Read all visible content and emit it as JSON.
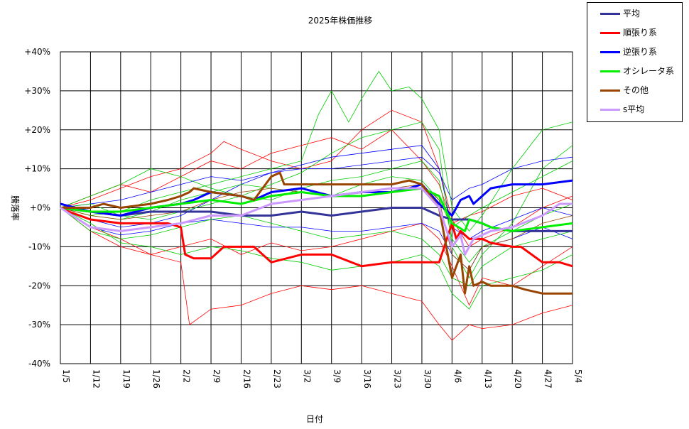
{
  "chart_data": {
    "type": "line",
    "title": "2025年株価推移",
    "xlabel": "日付",
    "ylabel": "騰落率",
    "x_ticks": [
      "1/5",
      "1/12",
      "1/19",
      "1/26",
      "2/2",
      "2/9",
      "2/16",
      "2/23",
      "3/2",
      "3/9",
      "3/16",
      "3/23",
      "3/30",
      "4/6",
      "4/13",
      "4/20",
      "4/27",
      "5/4"
    ],
    "y_ticks": [
      "+40%",
      "+30%",
      "+20%",
      "+10%",
      "+0%",
      "-10%",
      "-20%",
      "-30%",
      "-40%"
    ],
    "ylim": [
      -40,
      40
    ],
    "xlim_days": [
      0,
      119
    ],
    "grid": true,
    "legend_position": "top-right",
    "series": [
      {
        "name": "平均",
        "color": "#333399",
        "width": 3,
        "x": [
          0,
          7,
          14,
          21,
          28,
          35,
          42,
          49,
          56,
          63,
          70,
          77,
          84,
          88,
          91,
          94,
          95,
          98,
          100,
          105,
          112,
          119
        ],
        "y": [
          0,
          -1,
          -2,
          -1,
          -1,
          -1,
          -2,
          -2,
          -1,
          -2,
          -1,
          0,
          0,
          -2,
          -3,
          -3,
          -3,
          -4,
          -5,
          -6,
          -6,
          -6
        ]
      },
      {
        "name": "順張り系",
        "color": "#ff0000",
        "width": 3,
        "x": [
          0,
          2,
          7,
          14,
          21,
          25,
          28,
          29,
          31,
          35,
          38,
          42,
          45,
          49,
          56,
          63,
          70,
          77,
          84,
          88,
          91,
          92,
          93,
          95,
          98,
          100,
          105,
          107,
          112,
          116,
          119
        ],
        "y": [
          0,
          -1,
          -3,
          -4,
          -4,
          -4,
          -5,
          -12,
          -13,
          -13,
          -10,
          -10,
          -10,
          -14,
          -12,
          -12,
          -15,
          -14,
          -14,
          -14,
          -4,
          -8,
          -6,
          -8,
          -8,
          -9,
          -10,
          -10,
          -14,
          -14,
          -15
        ]
      },
      {
        "name": "逆張り系",
        "color": "#0000ff",
        "width": 3,
        "x": [
          0,
          7,
          14,
          21,
          28,
          31,
          35,
          42,
          45,
          49,
          56,
          63,
          70,
          77,
          81,
          84,
          88,
          91,
          93,
          95,
          96,
          98,
          100,
          105,
          112,
          119
        ],
        "y": [
          1,
          -1,
          -2,
          0,
          1,
          2,
          4,
          3,
          2,
          4,
          5,
          3,
          4,
          4,
          5,
          6,
          1,
          -2,
          2,
          3,
          1,
          3,
          5,
          6,
          6,
          7
        ]
      },
      {
        "name": "オシレータ系",
        "color": "#00ee00",
        "width": 3,
        "x": [
          0,
          7,
          14,
          21,
          28,
          35,
          42,
          49,
          56,
          63,
          70,
          77,
          84,
          88,
          91,
          94,
          95,
          98,
          100,
          105,
          112,
          119
        ],
        "y": [
          0,
          -1,
          -1,
          0,
          1,
          2,
          1,
          3,
          4,
          3,
          3,
          4,
          5,
          3,
          -4,
          -6,
          -3,
          -4,
          -5,
          -6,
          -5,
          -4
        ]
      },
      {
        "name": "その他",
        "color": "#994400",
        "width": 3,
        "x": [
          0,
          7,
          10,
          14,
          21,
          25,
          28,
          30,
          31,
          35,
          42,
          45,
          49,
          51,
          52,
          56,
          63,
          70,
          77,
          81,
          84,
          88,
          91,
          93,
          94,
          95,
          96,
          98,
          100,
          105,
          108,
          112,
          119
        ],
        "y": [
          0,
          0,
          1,
          0,
          1,
          2,
          3,
          4,
          5,
          4,
          3,
          2,
          8,
          9,
          6,
          6,
          6,
          6,
          6,
          7,
          6,
          0,
          -18,
          -12,
          -22,
          -15,
          -20,
          -19,
          -20,
          -20,
          -21,
          -22,
          -22
        ]
      },
      {
        "name": "s平均",
        "color": "#cc99ff",
        "width": 3,
        "x": [
          0,
          7,
          14,
          21,
          28,
          35,
          42,
          49,
          56,
          63,
          70,
          77,
          84,
          88,
          91,
          93,
          94,
          96,
          98,
          100,
          105,
          112,
          116,
          119
        ],
        "y": [
          0,
          -5,
          -6,
          -5,
          -4,
          -2,
          -2,
          1,
          2,
          3,
          4,
          5,
          5,
          0,
          -10,
          -7,
          -12,
          -8,
          -7,
          -6,
          -5,
          -2,
          1,
          1
        ]
      }
    ],
    "background_lines": [
      {
        "color": "#ff0000",
        "x": [
          0,
          7,
          14,
          21,
          28,
          30,
          35,
          42,
          49,
          56,
          63,
          70,
          77,
          84,
          88,
          91,
          95,
          98,
          105,
          112,
          119
        ],
        "y": [
          0,
          -5,
          -8,
          -12,
          -14,
          -30,
          -26,
          -25,
          -22,
          -20,
          -21,
          -20,
          -22,
          -24,
          -30,
          -34,
          -30,
          -31,
          -30,
          -27,
          -25
        ]
      },
      {
        "color": "#ff0000",
        "x": [
          0,
          7,
          14,
          21,
          28,
          35,
          38,
          42,
          49,
          56,
          63,
          70,
          77,
          84,
          88,
          91,
          95,
          98,
          105,
          112,
          119
        ],
        "y": [
          0,
          2,
          5,
          8,
          10,
          14,
          17,
          15,
          12,
          10,
          12,
          20,
          25,
          22,
          10,
          -3,
          -10,
          -8,
          -5,
          0,
          3
        ]
      },
      {
        "color": "#ff0000",
        "x": [
          0,
          7,
          14,
          21,
          28,
          35,
          42,
          49,
          56,
          63,
          70,
          77,
          84,
          88,
          91,
          95,
          98,
          105,
          112,
          119
        ],
        "y": [
          0,
          -6,
          -10,
          -12,
          -10,
          -8,
          -12,
          -9,
          -11,
          -10,
          -8,
          -6,
          -4,
          -8,
          -15,
          -25,
          -18,
          -20,
          -15,
          -10
        ]
      },
      {
        "color": "#ff0000",
        "x": [
          0,
          7,
          14,
          21,
          28,
          35,
          42,
          49,
          56,
          63,
          70,
          77,
          84,
          88,
          91,
          95,
          98,
          105,
          112,
          119
        ],
        "y": [
          0,
          3,
          6,
          4,
          8,
          12,
          10,
          14,
          16,
          18,
          15,
          20,
          12,
          6,
          -4,
          -2,
          -1,
          3,
          5,
          2
        ]
      },
      {
        "color": "#0000ff",
        "x": [
          0,
          7,
          14,
          21,
          28,
          35,
          42,
          49,
          56,
          63,
          70,
          77,
          84,
          88,
          91,
          95,
          98,
          105,
          112,
          119
        ],
        "y": [
          0,
          -3,
          -5,
          -4,
          -2,
          2,
          6,
          9,
          11,
          13,
          14,
          15,
          16,
          10,
          -5,
          -8,
          -6,
          -3,
          0,
          -2
        ]
      },
      {
        "color": "#0000ff",
        "x": [
          0,
          7,
          14,
          21,
          28,
          35,
          42,
          49,
          56,
          63,
          70,
          77,
          84,
          88,
          91,
          95,
          98,
          105,
          112,
          119
        ],
        "y": [
          0,
          -5,
          -7,
          -6,
          -4,
          -3,
          -4,
          -5,
          -5,
          -6,
          -6,
          -5,
          -4,
          -6,
          -12,
          -16,
          -10,
          -8,
          -5,
          -8
        ]
      },
      {
        "color": "#0000ff",
        "x": [
          0,
          7,
          14,
          21,
          28,
          35,
          42,
          49,
          56,
          63,
          70,
          77,
          84,
          88,
          91,
          95,
          98,
          105,
          112,
          119
        ],
        "y": [
          0,
          1,
          2,
          4,
          6,
          8,
          7,
          9,
          10,
          10,
          11,
          12,
          13,
          9,
          2,
          5,
          6,
          10,
          12,
          13
        ]
      },
      {
        "color": "#00cc00",
        "x": [
          0,
          7,
          14,
          21,
          28,
          35,
          42,
          49,
          56,
          60,
          63,
          67,
          70,
          74,
          77,
          81,
          84,
          88,
          91,
          95,
          98,
          105,
          112,
          119
        ],
        "y": [
          0,
          -2,
          -1,
          2,
          4,
          6,
          8,
          10,
          12,
          24,
          30,
          22,
          28,
          35,
          30,
          31,
          28,
          20,
          0,
          -6,
          -2,
          10,
          20,
          22
        ]
      },
      {
        "color": "#00cc00",
        "x": [
          0,
          7,
          14,
          21,
          28,
          35,
          42,
          49,
          56,
          63,
          70,
          77,
          84,
          88,
          91,
          95,
          98,
          105,
          112,
          119
        ],
        "y": [
          0,
          3,
          6,
          10,
          8,
          5,
          3,
          6,
          9,
          14,
          18,
          20,
          22,
          15,
          -10,
          -18,
          -12,
          -4,
          10,
          16
        ]
      },
      {
        "color": "#00cc00",
        "x": [
          0,
          7,
          14,
          21,
          28,
          35,
          42,
          49,
          56,
          63,
          70,
          77,
          84,
          88,
          91,
          95,
          98,
          105,
          112,
          119
        ],
        "y": [
          0,
          -4,
          -9,
          -10,
          -12,
          -10,
          -11,
          -13,
          -14,
          -16,
          -15,
          -14,
          -12,
          -15,
          -22,
          -26,
          -20,
          -18,
          -16,
          -12
        ]
      },
      {
        "color": "#00cc00",
        "x": [
          0,
          7,
          14,
          21,
          28,
          35,
          42,
          49,
          56,
          63,
          70,
          77,
          84,
          88,
          91,
          95,
          98,
          105,
          112,
          119
        ],
        "y": [
          0,
          1,
          -2,
          -3,
          -1,
          1,
          3,
          2,
          5,
          7,
          8,
          10,
          12,
          7,
          -8,
          -14,
          -10,
          -6,
          -2,
          1
        ]
      },
      {
        "color": "#00cc00",
        "x": [
          0,
          7,
          14,
          21,
          28,
          35,
          42,
          49,
          56,
          63,
          70,
          77,
          84,
          88,
          91,
          95,
          98,
          105,
          112,
          119
        ],
        "y": [
          0,
          -2,
          -3,
          -1,
          2,
          4,
          6,
          5,
          4,
          3,
          6,
          8,
          7,
          2,
          -5,
          -2,
          0,
          4,
          8,
          12
        ]
      },
      {
        "color": "#00cc00",
        "x": [
          0,
          7,
          14,
          21,
          28,
          35,
          42,
          49,
          56,
          63,
          70,
          77,
          84,
          88,
          91,
          95,
          98,
          105,
          112,
          119
        ],
        "y": [
          0,
          -6,
          -8,
          -7,
          -5,
          -3,
          -2,
          -4,
          -6,
          -8,
          -7,
          -6,
          -8,
          -12,
          -18,
          -20,
          -15,
          -10,
          -8,
          -6
        ]
      },
      {
        "color": "#994400",
        "x": [
          0,
          7,
          14,
          21,
          28,
          35,
          42,
          49,
          56,
          63,
          70,
          77,
          84,
          88,
          91,
          95,
          98,
          105,
          112,
          119
        ],
        "y": [
          0,
          -2,
          -3,
          -2,
          -1,
          2,
          4,
          5,
          4,
          3,
          4,
          5,
          6,
          2,
          -12,
          -16,
          -10,
          -8,
          -4,
          -2
        ]
      }
    ]
  },
  "legend": {
    "items": [
      {
        "label": "平均",
        "color": "#333399"
      },
      {
        "label": "順張り系",
        "color": "#ff0000"
      },
      {
        "label": "逆張り系",
        "color": "#0000ff"
      },
      {
        "label": "オシレータ系",
        "color": "#00ee00"
      },
      {
        "label": "その他",
        "color": "#994400"
      },
      {
        "label": "s平均",
        "color": "#cc99ff"
      }
    ]
  }
}
